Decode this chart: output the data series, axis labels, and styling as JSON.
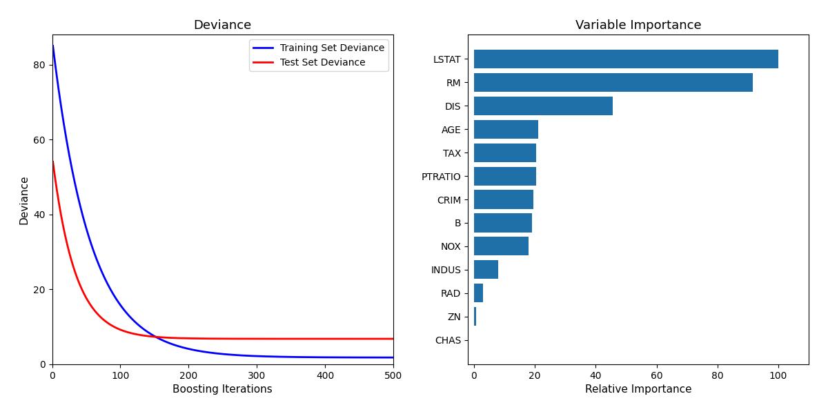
{
  "title_left": "Deviance",
  "title_right": "Variable Importance",
  "xlabel_left": "Boosting Iterations",
  "ylabel_left": "Deviance",
  "xlabel_right": "Relative Importance",
  "n_estimators": 500,
  "train_start": 86.5,
  "train_decay": 0.018,
  "train_floor": 1.8,
  "test_start": 55.5,
  "test_decay": 0.03,
  "test_floor": 6.8,
  "train_color": "#0000ff",
  "test_color": "#ff0000",
  "legend_train": "Training Set Deviance",
  "legend_test": "Test Set Deviance",
  "bar_color": "#1f6fa8",
  "feature_names": [
    "LSTAT",
    "RM",
    "DIS",
    "AGE",
    "TAX",
    "PTRATIO",
    "CRIM",
    "B",
    "NOX",
    "INDUS",
    "RAD",
    "ZN",
    "CHAS"
  ],
  "feature_importances": [
    100.0,
    91.5,
    45.5,
    21.0,
    20.5,
    20.3,
    19.5,
    19.0,
    18.0,
    8.0,
    3.0,
    0.8,
    0.05
  ],
  "ylim_left": [
    0,
    88
  ],
  "xlim_left": [
    0,
    500
  ],
  "xlim_right": [
    -2,
    110
  ],
  "yticks_left": [
    0,
    20,
    40,
    60,
    80
  ],
  "xticks_left": [
    0,
    100,
    200,
    300,
    400,
    500
  ],
  "xticks_right": [
    0,
    20,
    40,
    60,
    80,
    100
  ]
}
